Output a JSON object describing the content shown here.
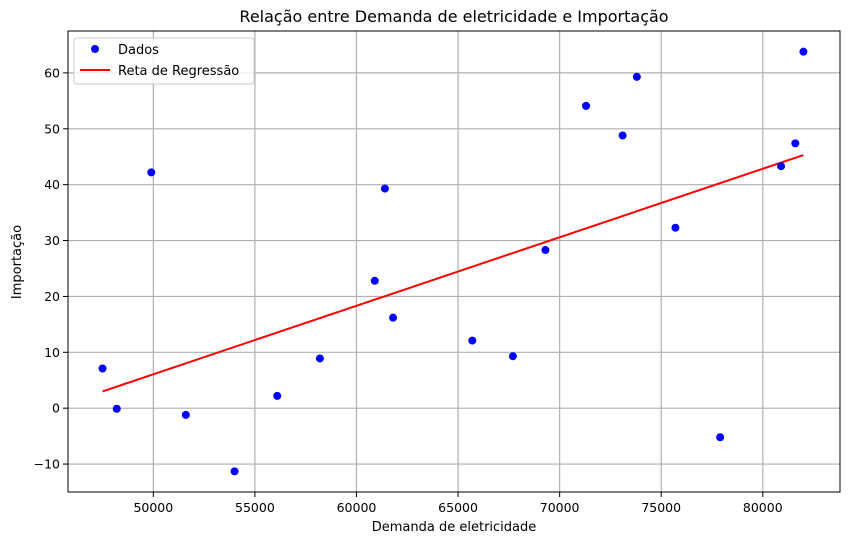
{
  "chart_data": {
    "type": "scatter",
    "title": "Relação entre Demanda de eletricidade e Importação",
    "xlabel": "Demanda de eletricidade",
    "ylabel": "Importação",
    "xlim": [
      45800,
      83800
    ],
    "ylim": [
      -15,
      67.5
    ],
    "xticks": [
      50000,
      55000,
      60000,
      65000,
      70000,
      75000,
      80000
    ],
    "xtick_labels": [
      "50000",
      "55000",
      "60000",
      "65000",
      "70000",
      "75000",
      "80000"
    ],
    "yticks": [
      -10,
      0,
      10,
      20,
      30,
      40,
      50,
      60
    ],
    "ytick_labels": [
      "−10",
      "0",
      "10",
      "20",
      "30",
      "40",
      "50",
      "60"
    ],
    "grid": true,
    "legend_position": "top-left",
    "series": [
      {
        "name": "Dados",
        "kind": "scatter",
        "color": "#0000ff",
        "x": [
          47500,
          48200,
          49900,
          51600,
          54000,
          56100,
          58200,
          60900,
          61400,
          61800,
          65700,
          67700,
          69300,
          71300,
          73100,
          73800,
          75700,
          77900,
          80900,
          81600,
          82000
        ],
        "y": [
          7.1,
          -0.1,
          42.2,
          -1.2,
          -11.3,
          2.2,
          8.9,
          22.8,
          39.3,
          16.2,
          12.1,
          9.3,
          28.3,
          54.1,
          48.8,
          59.3,
          32.3,
          -5.2,
          43.3,
          47.4,
          63.8
        ]
      },
      {
        "name": "Reta de Regressão",
        "kind": "line",
        "color": "#ff0000",
        "x": [
          47500,
          82000
        ],
        "y": [
          3.0,
          45.3
        ]
      }
    ]
  }
}
